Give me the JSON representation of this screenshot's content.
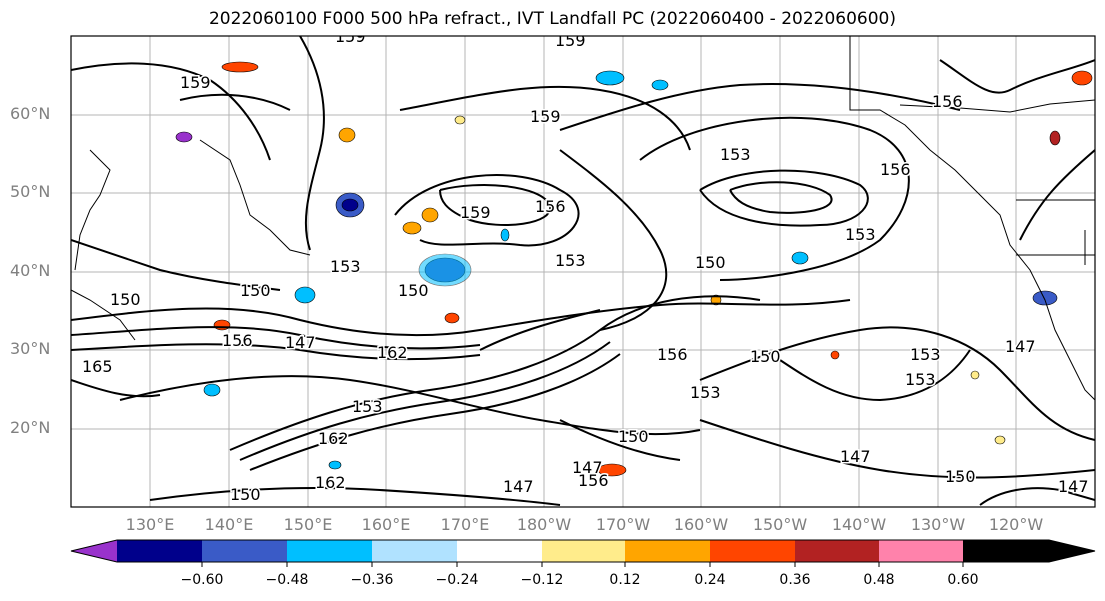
{
  "title": "2022060100 F000 500 hPa refract., IVT Landfall PC (2022060400 - 2022060600)",
  "lat_labels": [
    "60°N",
    "50°N",
    "40°N",
    "30°N",
    "20°N"
  ],
  "lon_labels": [
    "130°E",
    "140°E",
    "150°E",
    "160°E",
    "170°E",
    "180°W",
    "170°W",
    "160°W",
    "150°W",
    "140°W",
    "130°W",
    "120°W"
  ],
  "contour_labels": [
    "159",
    "159",
    "159",
    "159",
    "159",
    "156",
    "156",
    "153",
    "153",
    "153",
    "150",
    "150",
    "150",
    "150",
    "147",
    "147",
    "147",
    "156",
    "162",
    "156",
    "150",
    "153",
    "153",
    "153",
    "147",
    "147",
    "156",
    "165",
    "162",
    "150",
    "156",
    "153",
    "150",
    "150",
    "147",
    "153",
    "162"
  ],
  "colorbar": {
    "colors": [
      "#9932CC",
      "#00008B",
      "#3A5BC7",
      "#00BFFF",
      "#B0E2FF",
      "#FFFFFF",
      "#FFEC8B",
      "#FFA500",
      "#FF4500",
      "#B22222",
      "#FF82AB"
    ],
    "tick_labels": [
      "−0.60",
      "−0.48",
      "−0.36",
      "−0.24",
      "−0.12",
      "0.12",
      "0.24",
      "0.36",
      "0.48",
      "0.60"
    ]
  }
}
